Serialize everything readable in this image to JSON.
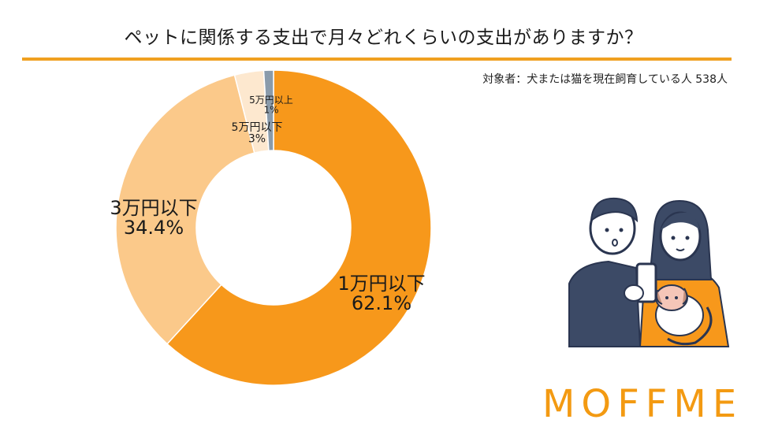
{
  "title": "ペットに関係する支出で月々どれくらいの支出がありますか？",
  "subtitle": "対象者：犬または猫を現在飼育している人 538人",
  "brand": {
    "logo_text": "MOFFME",
    "color": "#f39a12"
  },
  "chart_data": {
    "type": "pie",
    "title": "ペットに関係する支出で月々どれくらいの支出がありますか？",
    "subtitle": "対象者：犬または猫を現在飼育している人 538人",
    "donut": true,
    "start": "12 o'clock, clockwise",
    "slices": [
      {
        "label": "1万円以下",
        "value": 62.1,
        "value_label": "62.1%",
        "color": "#f7981b"
      },
      {
        "label": "3万円以下",
        "value": 34.4,
        "value_label": "34.4%",
        "color": "#fbc98a"
      },
      {
        "label": "5万円以下",
        "value": 3,
        "value_label": "3%",
        "color": "#fde8cf"
      },
      {
        "label": "5万円以上",
        "value": 1,
        "value_label": "1%",
        "color": "#8a9bab"
      }
    ]
  }
}
